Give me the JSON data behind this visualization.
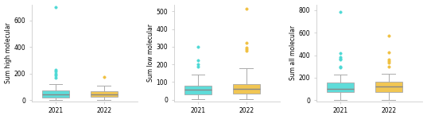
{
  "plots": [
    {
      "ylabel": "Sum high molecular",
      "xlabels": [
        "2021",
        "2022"
      ],
      "color_2021": "#4DD9D5",
      "color_2022": "#F0C040",
      "box_2021": {
        "q1": 20,
        "median": 45,
        "q3": 70,
        "whislo": 2,
        "whishi": 120
      },
      "box_2022": {
        "q1": 25,
        "median": 45,
        "q3": 65,
        "whislo": 2,
        "whishi": 110
      },
      "outliers_2021": [
        170,
        185,
        200,
        215,
        230,
        700
      ],
      "outliers_2022": [
        175
      ],
      "ylim": [
        -10,
        720
      ],
      "yticks": [
        0,
        200,
        400,
        600
      ]
    },
    {
      "ylabel": "Sum low molecular",
      "xlabels": [
        "2021",
        "2022"
      ],
      "color_2021": "#4DD9D5",
      "color_2022": "#F0C040",
      "box_2021": {
        "q1": 30,
        "median": 55,
        "q3": 80,
        "whislo": 2,
        "whishi": 140
      },
      "box_2022": {
        "q1": 35,
        "median": 60,
        "q3": 90,
        "whislo": 2,
        "whishi": 180
      },
      "outliers_2021": [
        185,
        200,
        225,
        300
      ],
      "outliers_2022": [
        275,
        285,
        295,
        320,
        515
      ],
      "ylim": [
        -10,
        540
      ],
      "yticks": [
        0,
        100,
        200,
        300,
        400,
        500
      ]
    },
    {
      "ylabel": "Sum all molecular",
      "xlabels": [
        "2021",
        "2022"
      ],
      "color_2021": "#4DD9D5",
      "color_2022": "#F0C040",
      "box_2021": {
        "q1": 70,
        "median": 100,
        "q3": 155,
        "whislo": 2,
        "whishi": 230
      },
      "box_2022": {
        "q1": 75,
        "median": 120,
        "q3": 165,
        "whislo": 2,
        "whishi": 235
      },
      "outliers_2021": [
        290,
        300,
        360,
        370,
        380,
        420,
        785
      ],
      "outliers_2022": [
        300,
        335,
        350,
        360,
        425,
        575
      ],
      "ylim": [
        -10,
        850
      ],
      "yticks": [
        0,
        200,
        400,
        600,
        800
      ]
    }
  ],
  "bg_color": "#ffffff",
  "flier_size": 2.5,
  "ylabel_fontsize": 5.5,
  "tick_fontsize": 5.5
}
